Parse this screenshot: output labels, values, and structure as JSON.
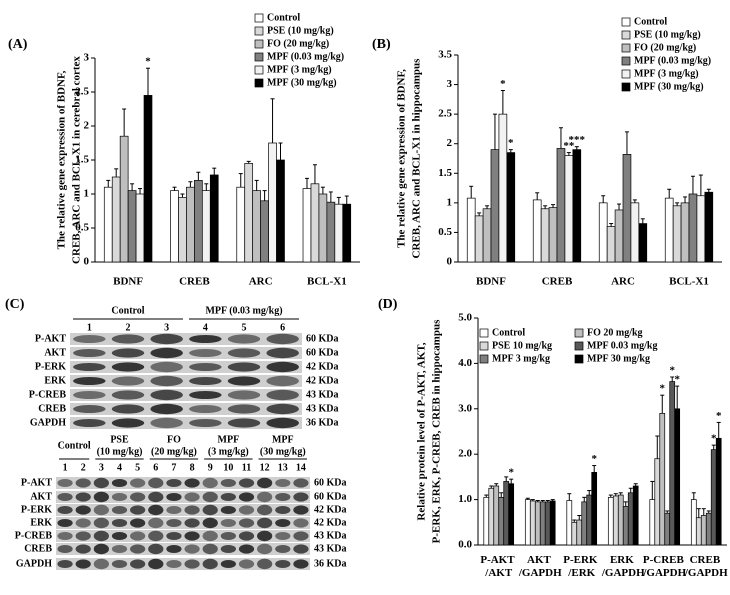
{
  "chart_data": [
    {
      "type": "bar",
      "panel": "(A)",
      "ylabel": [
        "The relative gene expression of BDNF,",
        "CREB, ARC and BCL-X1 in cerebral cortex"
      ],
      "categories": [
        "BDNF",
        "CREB",
        "ARC",
        "BCL-X1"
      ],
      "series": [
        {
          "name": "Control",
          "color": "#ffffff",
          "values": [
            1.1,
            1.05,
            1.1,
            1.08
          ],
          "errors": [
            0.1,
            0.05,
            0.2,
            0.15
          ]
        },
        {
          "name": "PSE (10 mg/kg)",
          "color": "#d9d9d9",
          "values": [
            1.25,
            0.95,
            1.45,
            1.15
          ],
          "errors": [
            0.12,
            0.05,
            0.03,
            0.28
          ]
        },
        {
          "name": "FO (20 mg/kg)",
          "color": "#bfbfbf",
          "values": [
            1.85,
            1.1,
            1.05,
            1.0
          ],
          "errors": [
            0.4,
            0.08,
            0.15,
            0.1
          ]
        },
        {
          "name": "MPF (0.03 mg/kg)",
          "color": "#808080",
          "values": [
            1.05,
            1.2,
            0.9,
            0.88
          ],
          "errors": [
            0.1,
            0.12,
            0.15,
            0.15
          ]
        },
        {
          "name": "MPF (3 mg/kg)",
          "color": "#f2f2f2",
          "values": [
            1.0,
            1.05,
            1.75,
            0.85
          ],
          "errors": [
            0.08,
            0.1,
            0.65,
            0.1
          ]
        },
        {
          "name": "MPF (30 mg/kg)",
          "color": "#000000",
          "values": [
            2.45,
            1.28,
            1.5,
            0.85
          ],
          "errors": [
            0.4,
            0.1,
            0.25,
            0.12
          ]
        }
      ],
      "annotations": [
        {
          "text": "*",
          "series": 5,
          "category": 0
        }
      ],
      "ylim": [
        0,
        3
      ],
      "yticks": [
        0,
        0.5,
        1,
        1.5,
        2,
        2.5,
        3
      ]
    },
    {
      "type": "bar",
      "panel": "(B)",
      "ylabel": [
        "The relative gene expression of BDNF,",
        "CREB, ARC and BCL-X1 in hippocampus"
      ],
      "categories": [
        "BDNF",
        "CREB",
        "ARC",
        "BCL-X1"
      ],
      "series": [
        {
          "name": "Control",
          "color": "#ffffff",
          "values": [
            1.08,
            1.05,
            1.0,
            1.08
          ],
          "errors": [
            0.2,
            0.12,
            0.12,
            0.15
          ]
        },
        {
          "name": "PSE (10 mg/kg)",
          "color": "#d9d9d9",
          "values": [
            0.78,
            0.9,
            0.6,
            0.95
          ],
          "errors": [
            0.05,
            0.05,
            0.05,
            0.05
          ]
        },
        {
          "name": "FO (20 mg/kg)",
          "color": "#bfbfbf",
          "values": [
            0.9,
            0.92,
            0.88,
            1.0
          ],
          "errors": [
            0.05,
            0.05,
            0.1,
            0.1
          ]
        },
        {
          "name": "MPF (0.03 mg/kg)",
          "color": "#808080",
          "values": [
            1.9,
            1.92,
            1.82,
            1.15
          ],
          "errors": [
            0.6,
            0.35,
            0.38,
            0.3
          ]
        },
        {
          "name": "MPF (3 mg/kg)",
          "color": "#f2f2f2",
          "values": [
            2.5,
            1.8,
            1.0,
            1.12
          ],
          "errors": [
            0.4,
            0.05,
            0.05,
            0.35
          ]
        },
        {
          "name": "MPF (30 mg/kg)",
          "color": "#000000",
          "values": [
            1.85,
            1.9,
            0.65,
            1.18
          ],
          "errors": [
            0.05,
            0.05,
            0.08,
            0.05
          ]
        }
      ],
      "annotations": [
        {
          "text": "*",
          "series": 4,
          "category": 0
        },
        {
          "text": "*",
          "series": 5,
          "category": 0
        },
        {
          "text": "**",
          "series": 4,
          "category": 1
        },
        {
          "text": "***",
          "series": 5,
          "category": 1
        }
      ],
      "ylim": [
        0,
        3.5
      ],
      "yticks": [
        0,
        0.5,
        1,
        1.5,
        2,
        2.5,
        3,
        3.5
      ]
    },
    {
      "type": "bar",
      "panel": "(D)",
      "ylabel": [
        "Relative protein level of P-AKT, AKT,",
        "P-ERK, ERK, P-CREB, CREB in hippocampus"
      ],
      "categories": [
        "P-AKT /AKT",
        "AKT /GAPDH",
        "P-ERK /ERK",
        "ERK /GAPDH",
        "P-CREB /GAPDH",
        "CREB /GAPDH"
      ],
      "series": [
        {
          "name": "Control",
          "color": "#ffffff",
          "values": [
            1.05,
            1.0,
            0.98,
            1.05,
            1.0,
            1.0
          ],
          "errors": [
            0.05,
            0.03,
            0.15,
            0.05,
            0.4,
            0.15
          ]
        },
        {
          "name": "PSE 10 mg/kg",
          "color": "#d9d9d9",
          "values": [
            1.25,
            0.97,
            0.5,
            1.08,
            1.9,
            0.6
          ],
          "errors": [
            0.05,
            0.03,
            0.05,
            0.05,
            0.5,
            0.2
          ]
        },
        {
          "name": "FO 20 mg/kg",
          "color": "#bfbfbf",
          "values": [
            1.3,
            0.95,
            0.55,
            1.1,
            2.9,
            0.65
          ],
          "errors": [
            0.05,
            0.03,
            0.1,
            0.05,
            0.4,
            0.15
          ]
        },
        {
          "name": "MPF 3 mg/kg",
          "color": "#7f7f7f",
          "values": [
            1.05,
            0.95,
            0.95,
            0.85,
            0.7,
            0.7
          ],
          "errors": [
            0.1,
            0.03,
            0.1,
            0.1,
            0.05,
            0.05
          ]
        },
        {
          "name": "MPF 0.03 mg/kg",
          "color": "#595959",
          "values": [
            1.4,
            0.95,
            1.1,
            1.15,
            3.6,
            2.1
          ],
          "errors": [
            0.1,
            0.03,
            0.1,
            0.1,
            0.1,
            0.1
          ]
        },
        {
          "name": "MPF 30 mg/kg",
          "color": "#000000",
          "values": [
            1.35,
            0.97,
            1.6,
            1.3,
            3.0,
            2.35
          ],
          "errors": [
            0.1,
            0.03,
            0.15,
            0.05,
            0.5,
            0.35
          ]
        }
      ],
      "annotations": [
        {
          "text": "*",
          "series": 5,
          "category": 0
        },
        {
          "text": "*",
          "series": 5,
          "category": 2
        },
        {
          "text": "*",
          "series": 2,
          "category": 4
        },
        {
          "text": "*",
          "series": 4,
          "category": 4
        },
        {
          "text": "*",
          "series": 5,
          "category": 4
        },
        {
          "text": "*",
          "series": 4,
          "category": 5
        },
        {
          "text": "*",
          "series": 5,
          "category": 5
        }
      ],
      "ylim": [
        0,
        5
      ],
      "yticks": [
        {
          "value": 0,
          "label": "0.0"
        },
        {
          "value": 1,
          "label": "1.0"
        },
        {
          "value": 2,
          "label": "2.0"
        },
        {
          "value": 3,
          "label": "3.0"
        },
        {
          "value": 4,
          "label": "4.0"
        },
        {
          "value": 5,
          "label": "5.0"
        }
      ]
    }
  ],
  "blot_panel": {
    "panel": "(C)",
    "top": {
      "groups": [
        "Control",
        "MPF (0.03 mg/kg)"
      ],
      "lanes": [
        1,
        2,
        3,
        4,
        5,
        6
      ],
      "rows": [
        {
          "label": "P-AKT",
          "size": "60 KDa"
        },
        {
          "label": "AKT",
          "size": "60 KDa"
        },
        {
          "label": "P-ERK",
          "size": "42 KDa"
        },
        {
          "label": "ERK",
          "size": "42 KDa"
        },
        {
          "label": "P-CREB",
          "size": "43 KDa"
        },
        {
          "label": "CREB",
          "size": "43 KDa"
        },
        {
          "label": "GAPDH",
          "size": "36 KDa"
        }
      ]
    },
    "bottom": {
      "groups": [
        [
          "Control"
        ],
        [
          "PSE",
          "(10 mg/kg)"
        ],
        [
          "FO",
          "(20 mg/kg)"
        ],
        [
          "MPF",
          "(3 mg/kg)"
        ],
        [
          "MPF",
          "(30 mg/kg)"
        ]
      ],
      "lanes": [
        1,
        2,
        3,
        4,
        5,
        6,
        7,
        8,
        9,
        10,
        11,
        12,
        13,
        14
      ],
      "rows": [
        {
          "label": "P-AKT",
          "size": "60 KDa"
        },
        {
          "label": "AKT",
          "size": "60 KDa"
        },
        {
          "label": "P-ERK",
          "size": "42 KDa"
        },
        {
          "label": "ERK",
          "size": "42 KDa"
        },
        {
          "label": "P-CREB",
          "size": "43 KDa"
        },
        {
          "label": "CREB",
          "size": "43 KDa"
        },
        {
          "label": "GAPDH",
          "size": "36 KDa"
        }
      ]
    }
  }
}
